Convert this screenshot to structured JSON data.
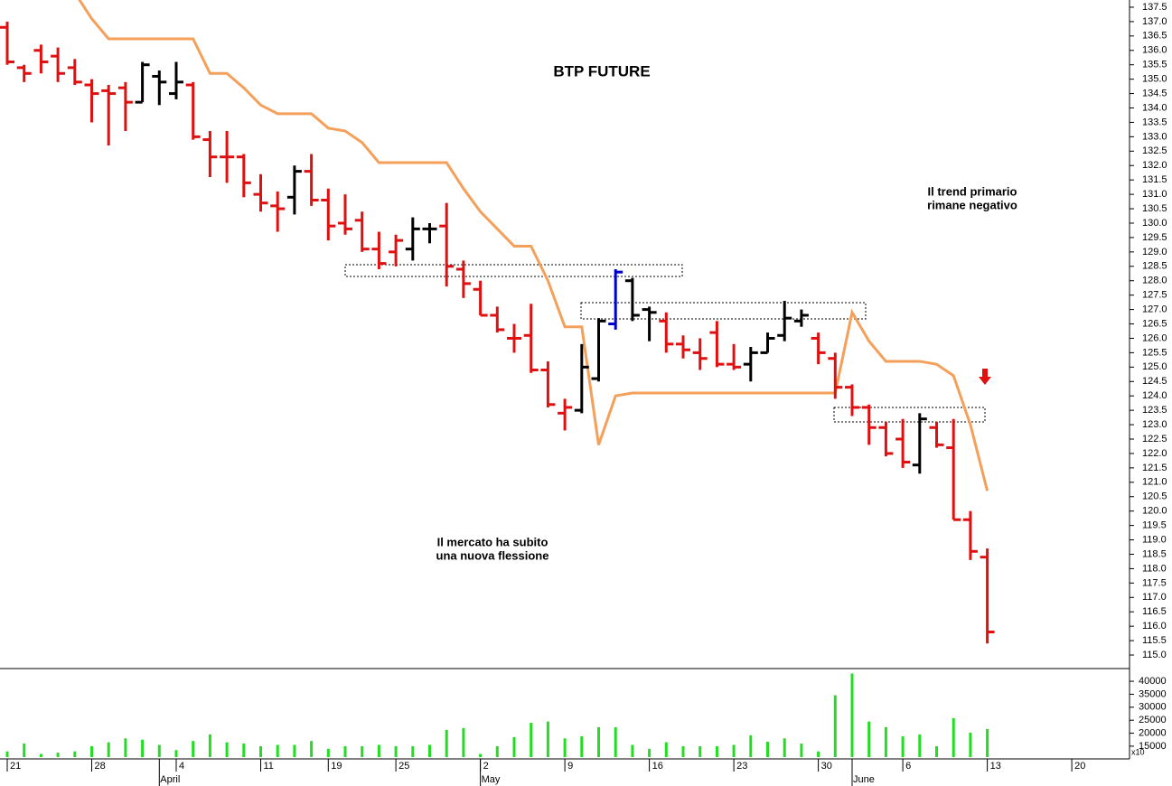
{
  "chart_data": {
    "type": "ohlc",
    "title": "BTP FUTURE",
    "categories": [
      "21",
      null,
      null,
      null,
      null,
      "28",
      null,
      null,
      null,
      null,
      "4",
      null,
      null,
      null,
      null,
      "11",
      null,
      null,
      null,
      "19",
      null,
      null,
      null,
      "25",
      null,
      null,
      null,
      null,
      "2",
      null,
      null,
      null,
      null,
      "9",
      null,
      null,
      null,
      null,
      "16",
      null,
      null,
      null,
      null,
      "23",
      null,
      null,
      null,
      null,
      "30",
      null,
      null,
      null,
      null,
      "6",
      null,
      null,
      null,
      null,
      "13",
      null,
      null,
      null,
      null,
      "20"
    ],
    "month_labels": [
      null,
      null,
      null,
      null,
      null,
      null,
      null,
      null,
      null,
      "April",
      null,
      null,
      null,
      null,
      null,
      null,
      null,
      null,
      null,
      null,
      null,
      null,
      null,
      null,
      null,
      null,
      null,
      null,
      "May",
      null,
      null,
      null,
      null,
      null,
      null,
      null,
      null,
      null,
      null,
      null,
      null,
      null,
      null,
      null,
      null,
      null,
      null,
      null,
      null,
      null,
      "June",
      null,
      null,
      null,
      null,
      null,
      null,
      null,
      null,
      null,
      null,
      null,
      null,
      null
    ],
    "open": [
      136.8,
      135.4,
      136.0,
      135.8,
      135.4,
      134.8,
      134.6,
      134.7,
      134.2,
      135.1,
      134.5,
      134.8,
      132.9,
      132.3,
      132.3,
      131.0,
      130.6,
      130.9,
      131.8,
      130.8,
      130.0,
      130.1,
      129.1,
      129.0,
      129.1,
      129.8,
      129.9,
      128.4,
      127.7,
      126.8,
      126.0,
      126.1,
      124.9,
      123.4,
      123.5,
      124.6,
      126.5,
      128.0,
      127.0,
      126.6,
      125.8,
      125.5,
      126.2,
      125.1,
      125.1,
      125.5,
      126.1,
      126.6,
      126.0,
      125.3,
      124.3,
      123.6,
      122.9,
      122.5,
      121.6,
      122.9,
      122.2,
      119.7,
      118.4,
      null,
      null,
      null,
      null,
      null
    ],
    "high": [
      137.0,
      135.5,
      136.2,
      136.1,
      135.7,
      135.0,
      134.8,
      134.9,
      135.6,
      135.3,
      135.6,
      134.9,
      133.2,
      133.2,
      132.4,
      131.7,
      131.1,
      132.0,
      132.4,
      131.2,
      131.0,
      130.4,
      129.7,
      129.6,
      130.2,
      130.0,
      130.7,
      128.7,
      128.0,
      127.1,
      126.5,
      127.2,
      125.2,
      123.9,
      125.8,
      126.7,
      128.4,
      128.1,
      127.1,
      126.9,
      126.1,
      126.0,
      126.6,
      125.8,
      125.7,
      126.2,
      127.3,
      127.0,
      126.2,
      125.5,
      124.4,
      123.7,
      123.1,
      123.2,
      123.4,
      123.1,
      123.2,
      120.0,
      118.7,
      null,
      null,
      null,
      null,
      null
    ],
    "low": [
      135.5,
      134.9,
      135.2,
      134.9,
      134.8,
      133.5,
      132.7,
      133.2,
      134.2,
      134.1,
      134.3,
      132.9,
      131.6,
      131.4,
      130.9,
      130.4,
      129.7,
      130.3,
      130.6,
      129.4,
      129.6,
      129.0,
      128.4,
      128.5,
      128.7,
      129.3,
      127.8,
      127.4,
      126.8,
      126.2,
      125.5,
      124.8,
      123.6,
      122.8,
      123.4,
      124.5,
      126.3,
      126.6,
      125.9,
      125.5,
      125.3,
      124.9,
      125.0,
      124.9,
      124.5,
      125.5,
      125.9,
      126.4,
      125.1,
      123.9,
      123.3,
      122.3,
      121.9,
      121.5,
      121.3,
      122.2,
      119.7,
      118.3,
      115.4,
      null,
      null,
      null,
      null,
      null
    ],
    "close": [
      135.6,
      135.2,
      135.6,
      135.2,
      134.9,
      134.5,
      134.5,
      134.2,
      135.5,
      134.9,
      134.9,
      133.0,
      132.3,
      132.3,
      131.4,
      130.7,
      130.5,
      131.8,
      130.8,
      129.9,
      129.8,
      129.1,
      128.6,
      129.4,
      129.8,
      129.8,
      128.5,
      127.9,
      126.8,
      126.3,
      126.0,
      124.9,
      123.7,
      123.6,
      125.0,
      126.6,
      128.3,
      126.8,
      126.9,
      125.8,
      125.6,
      125.3,
      125.1,
      125.0,
      125.5,
      126.0,
      126.7,
      126.8,
      125.5,
      124.3,
      123.6,
      122.9,
      122.0,
      121.7,
      123.2,
      122.3,
      119.7,
      118.6,
      115.8,
      null,
      null,
      null,
      null,
      null
    ],
    "colors": [
      "#e01010",
      "#e01010",
      "#e01010",
      "#e01010",
      "#e01010",
      "#e01010",
      "#e01010",
      "#e01010",
      "#000000",
      "#000000",
      "#000000",
      "#e01010",
      "#e01010",
      "#e01010",
      "#e01010",
      "#e01010",
      "#e01010",
      "#000000",
      "#e01010",
      "#e01010",
      "#e01010",
      "#e01010",
      "#e01010",
      "#e01010",
      "#000000",
      "#000000",
      "#e01010",
      "#e01010",
      "#e01010",
      "#e01010",
      "#e01010",
      "#e01010",
      "#e01010",
      "#e01010",
      "#000000",
      "#000000",
      "#0000cc",
      "#000000",
      "#000000",
      "#e01010",
      "#e01010",
      "#e01010",
      "#e01010",
      "#e01010",
      "#000000",
      "#000000",
      "#000000",
      "#000000",
      "#e01010",
      "#e01010",
      "#e01010",
      "#e01010",
      "#e01010",
      "#e01010",
      "#000000",
      "#e01010",
      "#e01010",
      "#e01010",
      "#e01010",
      null,
      null,
      null,
      null,
      null
    ],
    "overlay": {
      "color": "#f5a05a",
      "values": [
        null,
        null,
        null,
        null,
        138.0,
        137.1,
        136.4,
        136.4,
        136.4,
        136.4,
        136.4,
        136.4,
        135.2,
        135.2,
        134.7,
        134.1,
        133.8,
        133.8,
        133.8,
        133.3,
        133.2,
        132.8,
        132.1,
        132.1,
        132.1,
        132.1,
        132.1,
        131.2,
        130.4,
        129.8,
        129.2,
        129.2,
        128.0,
        126.4,
        126.4,
        122.3,
        124.0,
        124.1,
        124.1,
        124.1,
        124.1,
        124.1,
        124.1,
        124.1,
        124.1,
        124.1,
        124.1,
        124.1,
        124.1,
        124.1,
        126.9,
        125.9,
        125.2,
        125.2,
        125.2,
        125.1,
        124.7,
        123.0,
        120.7,
        null,
        null,
        null,
        null,
        null
      ]
    },
    "ylim": [
      114.53,
      137.75
    ],
    "yticks": [
      {
        "value": 115,
        "label": "115.0"
      },
      {
        "value": 115.5,
        "label": "115.5"
      },
      {
        "value": 116,
        "label": "116.0"
      },
      {
        "value": 116.5,
        "label": "116.5"
      },
      {
        "value": 117,
        "label": "117.0"
      },
      {
        "value": 117.5,
        "label": "117.5"
      },
      {
        "value": 118,
        "label": "118.0"
      },
      {
        "value": 118.5,
        "label": "118.5"
      },
      {
        "value": 119,
        "label": "119.0"
      },
      {
        "value": 119.5,
        "label": "119.5"
      },
      {
        "value": 120,
        "label": "120.0"
      },
      {
        "value": 120.5,
        "label": "120.5"
      },
      {
        "value": 121,
        "label": "121.0"
      },
      {
        "value": 121.5,
        "label": "121.5"
      },
      {
        "value": 122,
        "label": "122.0"
      },
      {
        "value": 122.5,
        "label": "122.5"
      },
      {
        "value": 123,
        "label": "123.0"
      },
      {
        "value": 123.5,
        "label": "123.5"
      },
      {
        "value": 124,
        "label": "124.0"
      },
      {
        "value": 124.5,
        "label": "124.5"
      },
      {
        "value": 125,
        "label": "125.0"
      },
      {
        "value": 125.5,
        "label": "125.5"
      },
      {
        "value": 126,
        "label": "126.0"
      },
      {
        "value": 126.5,
        "label": "126.5"
      },
      {
        "value": 127,
        "label": "127.0"
      },
      {
        "value": 127.5,
        "label": "127.5"
      },
      {
        "value": 128,
        "label": "128.0"
      },
      {
        "value": 128.5,
        "label": "128.5"
      },
      {
        "value": 129,
        "label": "129.0"
      },
      {
        "value": 129.5,
        "label": "129.5"
      },
      {
        "value": 130,
        "label": "130.0"
      },
      {
        "value": 130.5,
        "label": "130.5"
      },
      {
        "value": 131,
        "label": "131.0"
      },
      {
        "value": 131.5,
        "label": "131.5"
      },
      {
        "value": 132,
        "label": "132.0"
      },
      {
        "value": 132.5,
        "label": "132.5"
      },
      {
        "value": 133,
        "label": "133.0"
      },
      {
        "value": 133.5,
        "label": "133.5"
      },
      {
        "value": 134,
        "label": "134.0"
      },
      {
        "value": 134.5,
        "label": "134.5"
      },
      {
        "value": 135,
        "label": "135.0"
      },
      {
        "value": 135.5,
        "label": "135.5"
      },
      {
        "value": 136,
        "label": "136.0"
      },
      {
        "value": 136.5,
        "label": "136.5"
      },
      {
        "value": 137,
        "label": "137.0"
      },
      {
        "value": 137.5,
        "label": "137.5"
      }
    ],
    "volume": {
      "color": "#22dd22",
      "unit_label": "x10",
      "values": [
        13000,
        16000,
        12000,
        12500,
        13000,
        15000,
        16500,
        18000,
        17500,
        15500,
        13500,
        17000,
        19500,
        16500,
        16000,
        15000,
        15500,
        15500,
        17000,
        14000,
        15000,
        15000,
        15500,
        15000,
        15000,
        15500,
        21300,
        22000,
        12000,
        15000,
        18500,
        24000,
        24500,
        18000,
        18800,
        22300,
        22300,
        15500,
        14000,
        16500,
        15000,
        15000,
        15000,
        15500,
        19200,
        16700,
        18000,
        16000,
        13000,
        34600,
        43000,
        24500,
        22300,
        18800,
        19500,
        15000,
        25800,
        20200,
        21600,
        null,
        null,
        null,
        null,
        null
      ],
      "ylim": [
        10800,
        44200
      ],
      "yticks": [
        15000,
        20000,
        25000,
        30000,
        35000,
        40000
      ]
    },
    "annotations": [
      {
        "lines": [
          "Il trend primario",
          "rimane negativo"
        ],
        "color": "#e01010"
      },
      {
        "lines": [
          "Il mercato ha subito",
          "una nuova flessione"
        ],
        "color": "#e01010"
      }
    ]
  }
}
